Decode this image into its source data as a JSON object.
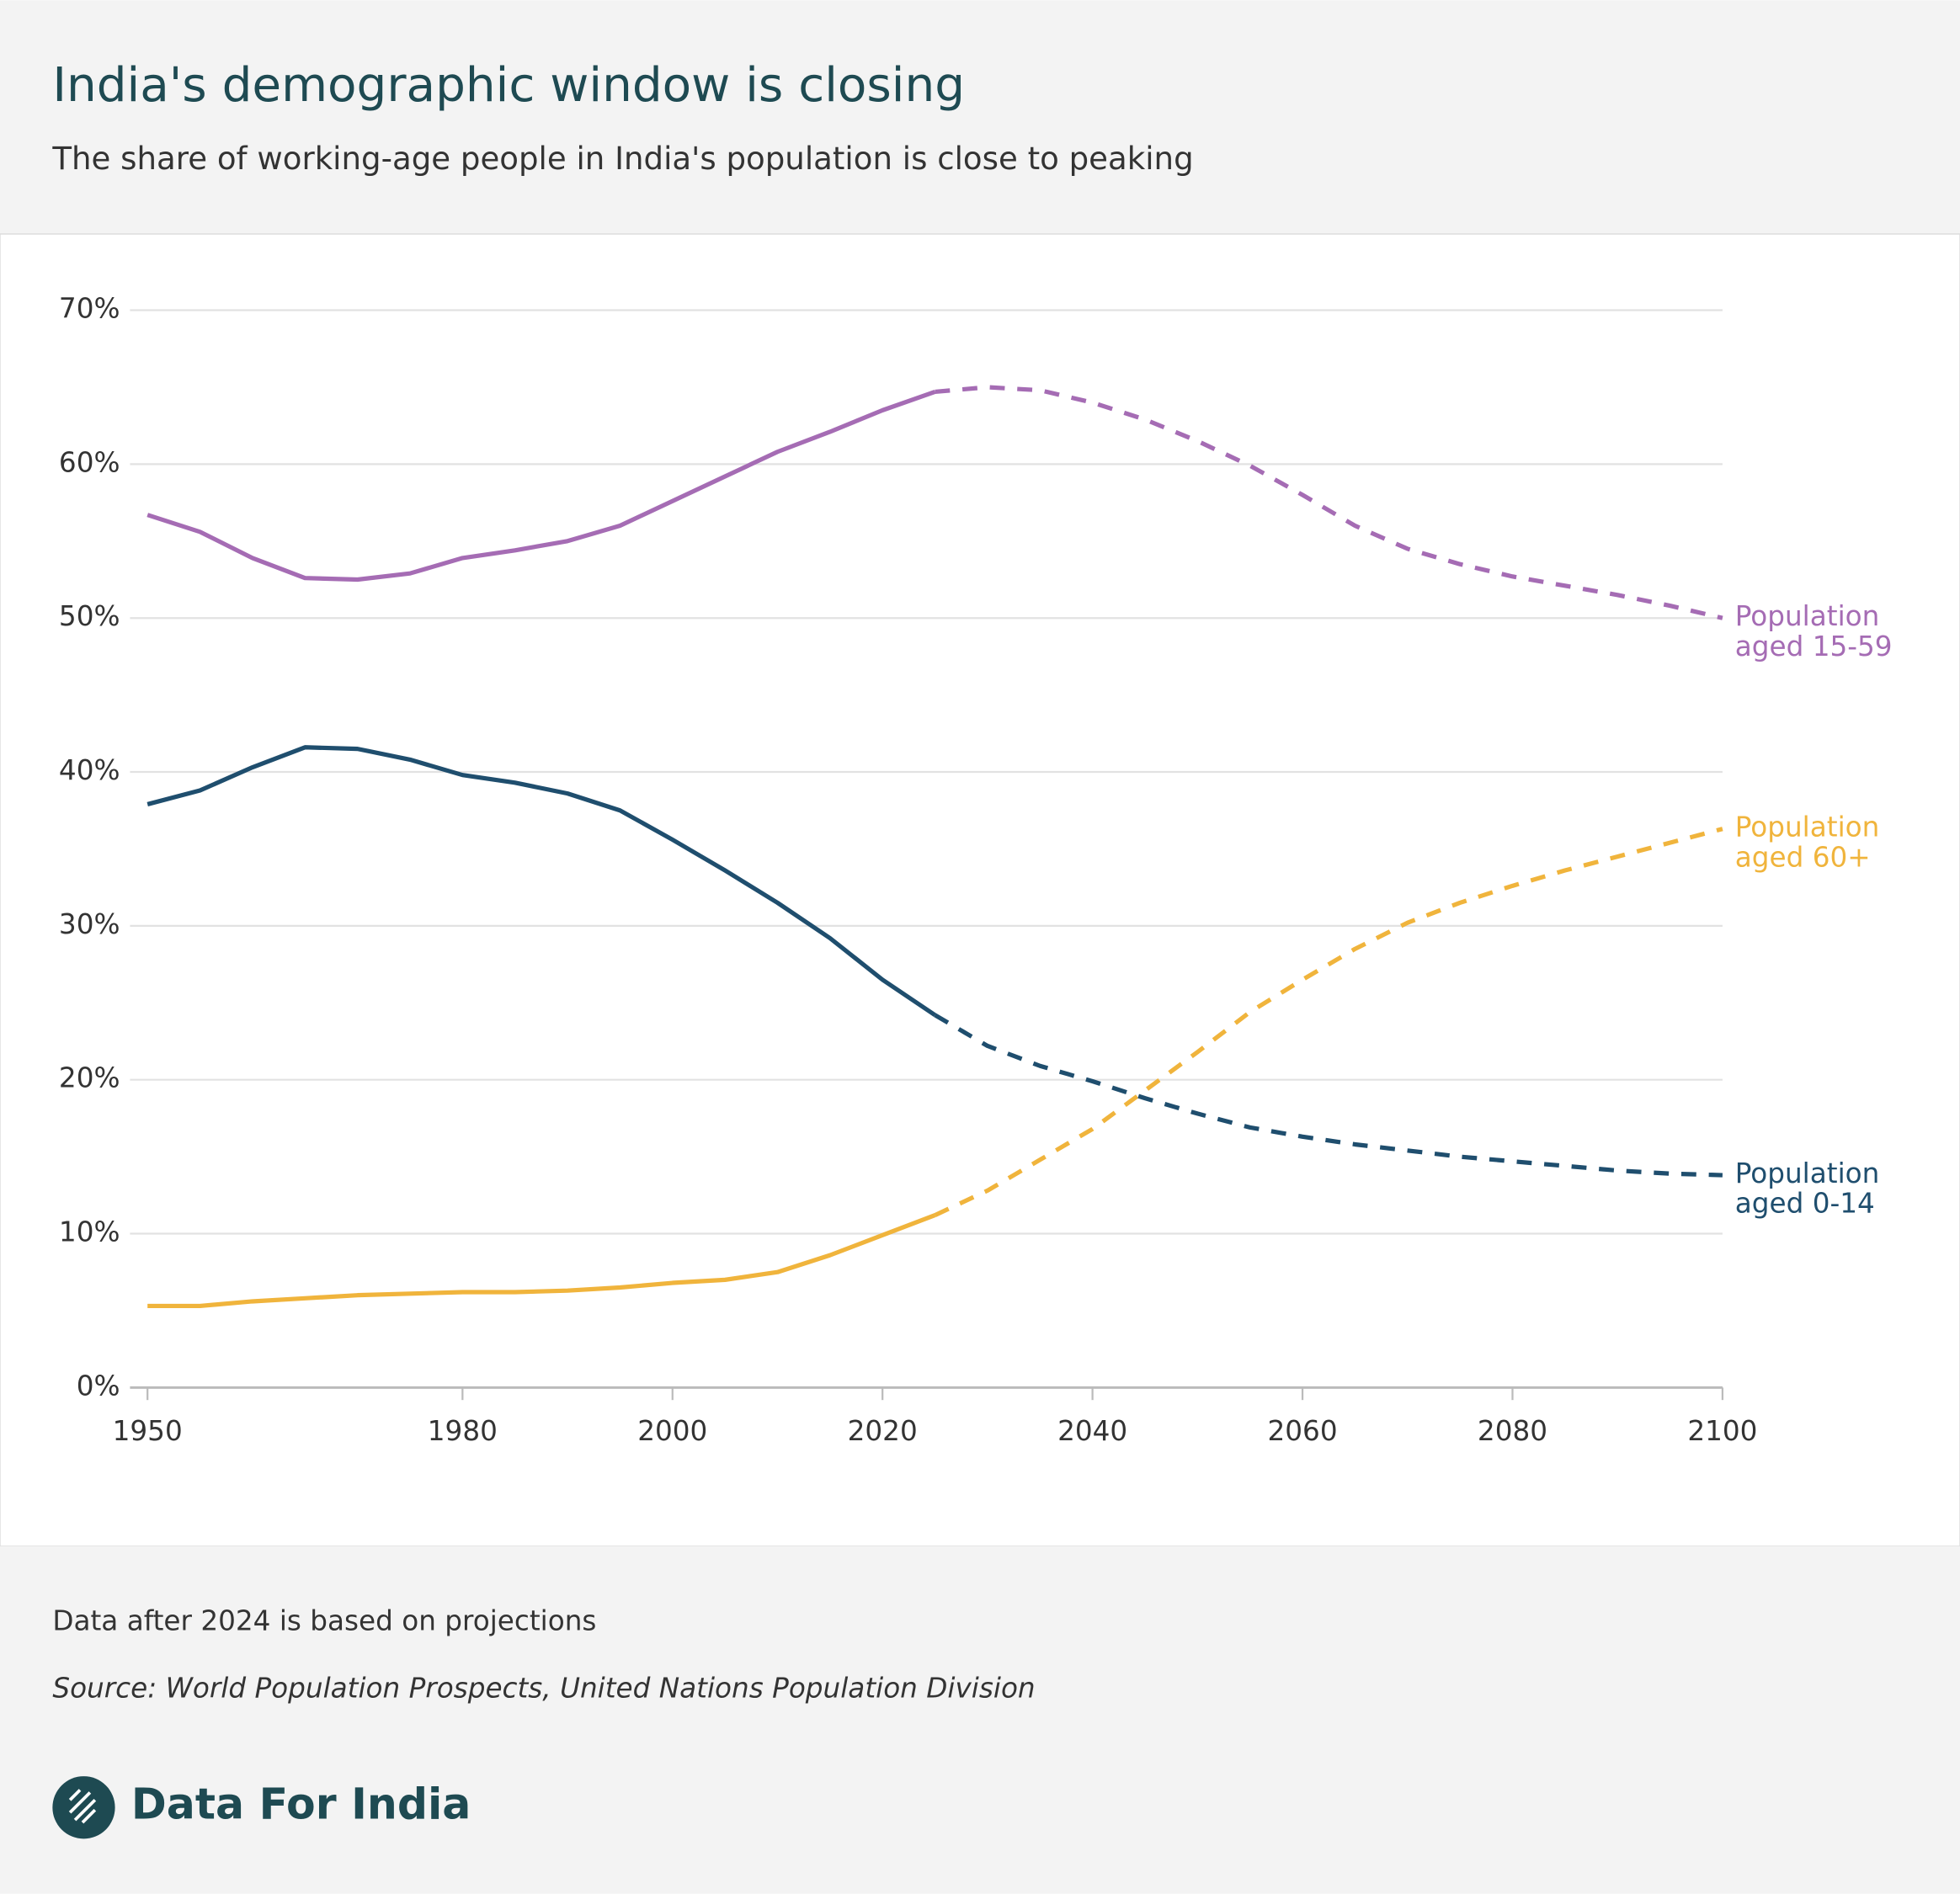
{
  "chart_data": {
    "type": "line",
    "title": "India's demographic window is closing",
    "subtitle": "The share of working-age people in India's population is close to peaking",
    "note": "Data after 2024 is based on projections",
    "source": "Source: World Population Prospects, United Nations Population Division",
    "x": [
      1950,
      1955,
      1960,
      1965,
      1970,
      1975,
      1980,
      1985,
      1990,
      1995,
      2000,
      2005,
      2010,
      2015,
      2020,
      2025,
      2030,
      2035,
      2040,
      2045,
      2050,
      2055,
      2060,
      2065,
      2070,
      2075,
      2080,
      2085,
      2090,
      2095,
      2100
    ],
    "projection_start": 2025,
    "series": [
      {
        "name": "Population aged 15-59",
        "color": "#a56cb4",
        "values": [
          56.7,
          55.6,
          53.9,
          52.6,
          52.5,
          52.9,
          53.9,
          54.4,
          55.0,
          56.0,
          57.6,
          59.2,
          60.8,
          62.1,
          63.5,
          64.7,
          65.0,
          64.8,
          64.0,
          62.9,
          61.5,
          59.9,
          58.0,
          56.0,
          54.5,
          53.5,
          52.7,
          52.1,
          51.5,
          50.8,
          50.0
        ]
      },
      {
        "name": "Population aged 60+",
        "color": "#f0b43c",
        "values": [
          5.3,
          5.3,
          5.6,
          5.8,
          6.0,
          6.1,
          6.2,
          6.2,
          6.3,
          6.5,
          6.8,
          7.0,
          7.5,
          8.6,
          9.9,
          11.2,
          12.8,
          14.8,
          16.8,
          19.3,
          21.8,
          24.4,
          26.5,
          28.5,
          30.2,
          31.5,
          32.6,
          33.6,
          34.5,
          35.4,
          36.3
        ]
      },
      {
        "name": "Population aged 0-14",
        "color": "#1f4e6e",
        "values": [
          37.9,
          38.8,
          40.3,
          41.6,
          41.5,
          40.8,
          39.8,
          39.3,
          38.6,
          37.5,
          35.6,
          33.6,
          31.5,
          29.2,
          26.5,
          24.2,
          22.2,
          20.9,
          19.9,
          18.8,
          17.8,
          16.9,
          16.3,
          15.8,
          15.4,
          15.0,
          14.7,
          14.4,
          14.1,
          13.9,
          13.8
        ]
      }
    ],
    "xlim": [
      1950,
      2100
    ],
    "xticks": [
      1950,
      1980,
      2000,
      2020,
      2040,
      2060,
      2080,
      2100
    ],
    "ylim": [
      0,
      70
    ],
    "yticks": [
      {
        "value": 0,
        "label": "0%"
      },
      {
        "value": 10,
        "label": "10%"
      },
      {
        "value": 20,
        "label": "20%"
      },
      {
        "value": 30,
        "label": "30%"
      },
      {
        "value": 40,
        "label": "40%"
      },
      {
        "value": 50,
        "label": "50%"
      },
      {
        "value": 60,
        "label": "60%"
      },
      {
        "value": 70,
        "label": "70%"
      }
    ],
    "grid": true
  },
  "brand": "Data For India"
}
